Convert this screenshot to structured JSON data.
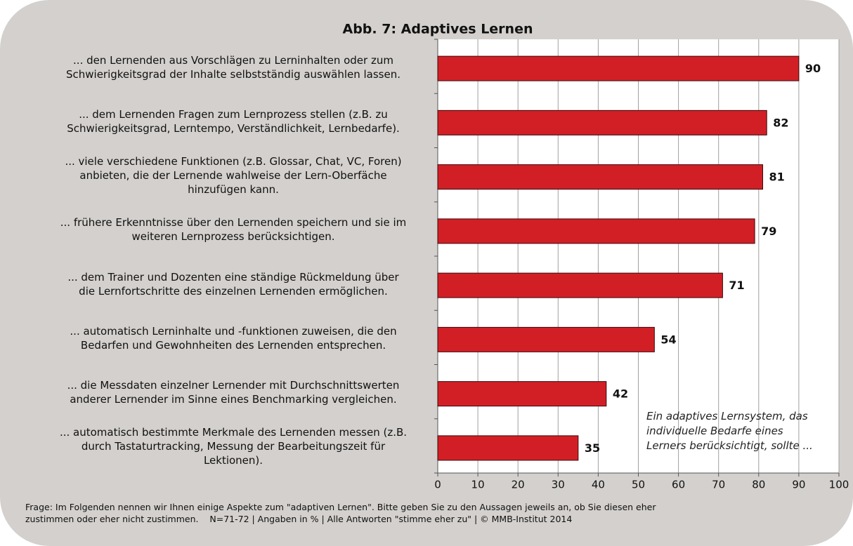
{
  "chart_data": {
    "type": "bar",
    "orientation": "horizontal",
    "title": "Abb. 7: Adaptives Lernen",
    "categories": [
      "... den Lernenden aus Vorschlägen zu Lerninhalten oder zum\nSchwierigkeitsgrad der Inhalte selbstständig auswählen lassen.",
      "... dem Lernenden Fragen zum Lernprozess stellen (z.B. zu\nSchwierigkeitsgrad, Lerntempo, Verständlichkeit, Lernbedarfe).",
      "... viele verschiedene Funktionen (z.B. Glossar, Chat, VC, Foren)\nanbieten, die der Lernende wahlweise der Lern-Oberfäche\nhinzufügen kann.",
      "... frühere Erkenntnisse über den Lernenden speichern und sie im\nweiteren Lernprozess berücksichtigen.",
      "... dem Trainer und Dozenten eine ständige Rückmeldung über\ndie Lernfortschritte des einzelnen Lernenden ermöglichen.",
      "... automatisch Lerninhalte und -funktionen zuweisen, die den\nBedarfen und Gewohnheiten des Lernenden entsprechen.",
      "... die Messdaten einzelner Lernender mit Durchschnittswerten\nanderer Lernender im Sinne eines Benchmarking vergleichen.",
      "... automatisch bestimmte Merkmale des Lernenden messen (z.B.\ndurch Tastaturtracking, Messung der Bearbeitungszeit für\nLektionen)."
    ],
    "values": [
      90,
      82,
      81,
      79,
      71,
      54,
      42,
      35
    ],
    "color": "#d21f26",
    "xlim": [
      0,
      100
    ],
    "xticks": [
      0,
      10,
      20,
      30,
      40,
      50,
      60,
      70,
      80,
      90,
      100
    ],
    "grid": true,
    "annotation": "Ein adaptives Lernsystem, das\nindividuelle Bedarfe eines\nLerners berücksichtigt, sollte ...",
    "footnote": "Frage: Im Folgenden nennen wir Ihnen einige Aspekte zum \"adaptiven Lernen\". Bitte geben Sie zu den Aussagen jeweils an, ob Sie diesen eher\nzustimmen oder eher nicht zustimmen.    N=71-72 | Angaben in % | Alle Antworten \"stimme eher zu\" | © MMB-Institut 2014"
  }
}
